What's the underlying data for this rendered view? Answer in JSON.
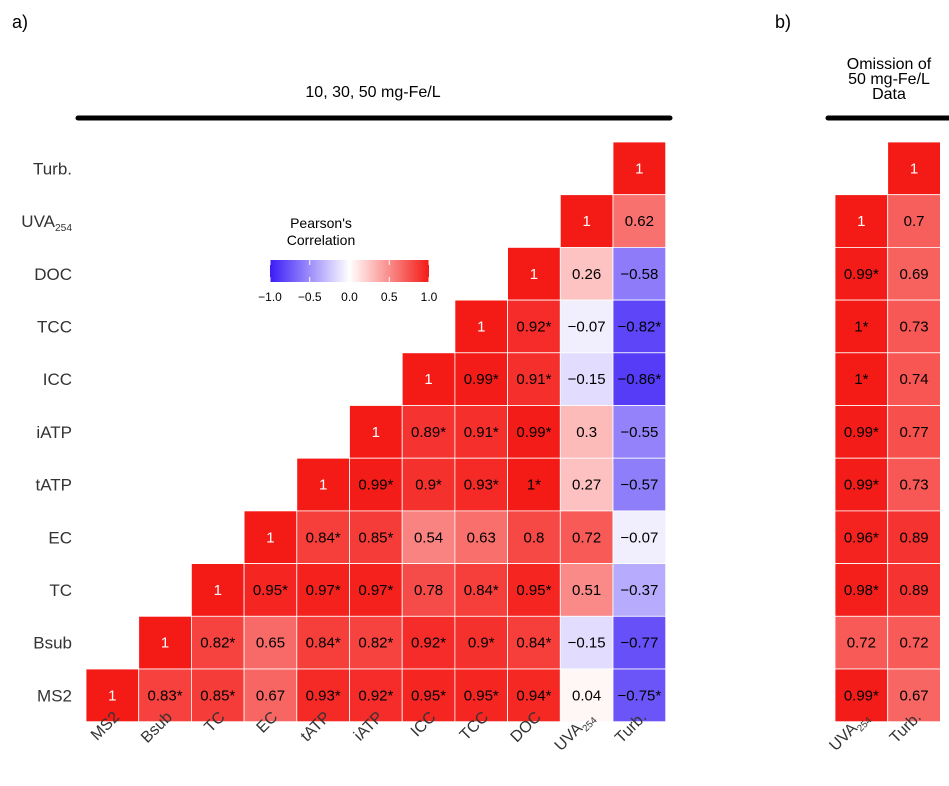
{
  "chart_data": [
    {
      "type": "heatmap",
      "panel_label": "a)",
      "title": "10, 30, 50 mg-Fe/L",
      "rows": [
        "Turb.",
        "UVA254",
        "DOC",
        "TCC",
        "ICC",
        "iATP",
        "tATP",
        "EC",
        "TC",
        "Bsub",
        "MS2"
      ],
      "columns": [
        "MS2",
        "Bsub",
        "TC",
        "EC",
        "tATP",
        "iATP",
        "ICC",
        "TCC",
        "DOC",
        "UVA254",
        "Turb."
      ],
      "cells": [
        [
          null,
          null,
          null,
          null,
          null,
          null,
          null,
          null,
          null,
          null,
          "1"
        ],
        [
          null,
          null,
          null,
          null,
          null,
          null,
          null,
          null,
          null,
          "1",
          "0.62"
        ],
        [
          null,
          null,
          null,
          null,
          null,
          null,
          null,
          null,
          "1",
          "0.26",
          "−0.58"
        ],
        [
          null,
          null,
          null,
          null,
          null,
          null,
          null,
          "1",
          "0.92*",
          "−0.07",
          "−0.82*"
        ],
        [
          null,
          null,
          null,
          null,
          null,
          null,
          "1",
          "0.99*",
          "0.91*",
          "−0.15",
          "−0.86*"
        ],
        [
          null,
          null,
          null,
          null,
          null,
          "1",
          "0.89*",
          "0.91*",
          "0.99*",
          "0.3",
          "−0.55"
        ],
        [
          null,
          null,
          null,
          null,
          "1",
          "0.99*",
          "0.9*",
          "0.93*",
          "1*",
          "0.27",
          "−0.57"
        ],
        [
          null,
          null,
          null,
          "1",
          "0.84*",
          "0.85*",
          "0.54",
          "0.63",
          "0.8",
          "0.72",
          "−0.07"
        ],
        [
          null,
          null,
          "1",
          "0.95*",
          "0.97*",
          "0.97*",
          "0.78",
          "0.84*",
          "0.95*",
          "0.51",
          "−0.37"
        ],
        [
          null,
          "1",
          "0.82*",
          "0.65",
          "0.84*",
          "0.82*",
          "0.92*",
          "0.9*",
          "0.84*",
          "−0.15",
          "−0.77"
        ],
        [
          "1",
          "0.83*",
          "0.85*",
          "0.67",
          "0.93*",
          "0.92*",
          "0.95*",
          "0.95*",
          "0.94*",
          "0.04",
          "−0.75*"
        ]
      ],
      "legend": {
        "title_line1": "Pearson's",
        "title_line2": "Correlation",
        "ticks": [
          "−1.0",
          "−0.5",
          "0.0",
          "0.5",
          "1.0"
        ],
        "range": [
          -1,
          1
        ],
        "colors": {
          "low": "#3b1cf6",
          "mid": "#ffffff",
          "high": "#f41a16"
        }
      }
    },
    {
      "type": "heatmap",
      "panel_label": "b)",
      "title_lines": [
        "Omission of",
        "50 mg-Fe/L",
        "Data"
      ],
      "columns": [
        "UVA254",
        "Turb."
      ],
      "cells": [
        [
          null,
          "1"
        ],
        [
          "1",
          "0.7"
        ],
        [
          "0.99*",
          "0.69"
        ],
        [
          "1*",
          "0.73"
        ],
        [
          "1*",
          "0.74"
        ],
        [
          "0.99*",
          "0.77"
        ],
        [
          "0.99*",
          "0.73"
        ],
        [
          "0.96*",
          "0.89"
        ],
        [
          "0.98*",
          "0.89"
        ],
        [
          "0.72",
          "0.72"
        ],
        [
          "0.99*",
          "0.67"
        ]
      ]
    }
  ]
}
